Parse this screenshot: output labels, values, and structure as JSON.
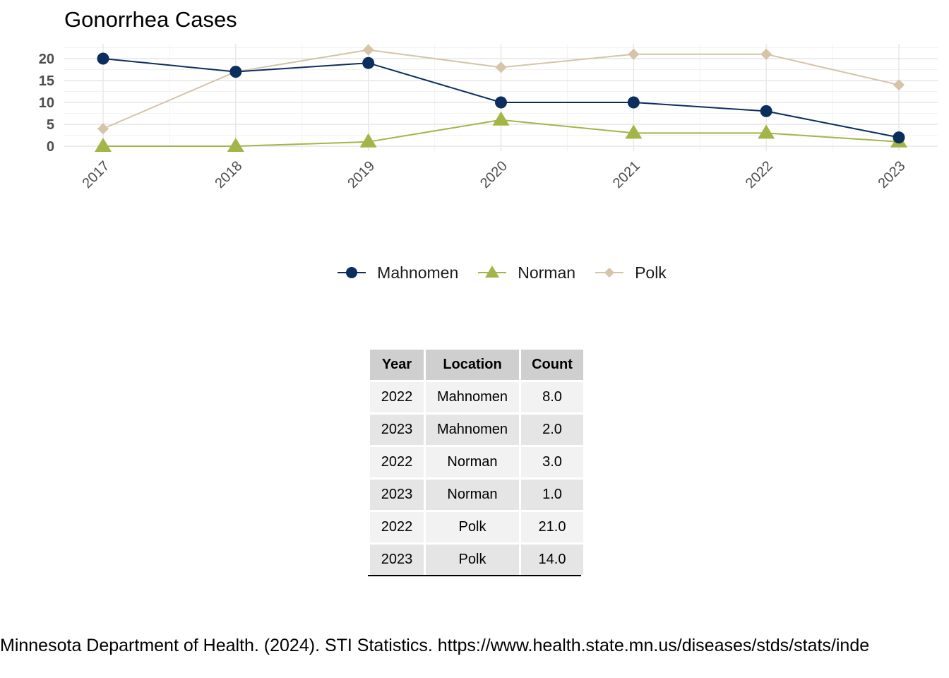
{
  "chart_data": {
    "type": "line",
    "title": "Gonorrhea Cases",
    "xlabel": "",
    "ylabel": "",
    "x": [
      "2017",
      "2018",
      "2019",
      "2020",
      "2021",
      "2022",
      "2023"
    ],
    "yticks": [
      "0",
      "5",
      "10",
      "15",
      "20"
    ],
    "ylim": [
      -1,
      23
    ],
    "grid": true,
    "legend_position": "bottom",
    "series": [
      {
        "name": "Mahnomen",
        "values": [
          20,
          17,
          19,
          10,
          10,
          8,
          2
        ],
        "color": "#0b2e5e",
        "marker": "circle"
      },
      {
        "name": "Norman",
        "values": [
          0,
          0,
          1,
          6,
          3,
          3,
          1
        ],
        "color": "#a3b548",
        "marker": "triangle"
      },
      {
        "name": "Polk",
        "values": [
          4,
          17,
          22,
          18,
          21,
          21,
          14
        ],
        "color": "#d5c4a8",
        "marker": "diamond"
      }
    ]
  },
  "table": {
    "headers": [
      "Year",
      "Location",
      "Count"
    ],
    "rows": [
      [
        "2022",
        "Mahnomen",
        "8.0"
      ],
      [
        "2023",
        "Mahnomen",
        "2.0"
      ],
      [
        "2022",
        "Norman",
        "3.0"
      ],
      [
        "2023",
        "Norman",
        "1.0"
      ],
      [
        "2022",
        "Polk",
        "21.0"
      ],
      [
        "2023",
        "Polk",
        "14.0"
      ]
    ]
  },
  "caption": "Minnesota Department of Health. (2024). STI Statistics. https://www.health.state.mn.us/diseases/stds/stats/inde"
}
